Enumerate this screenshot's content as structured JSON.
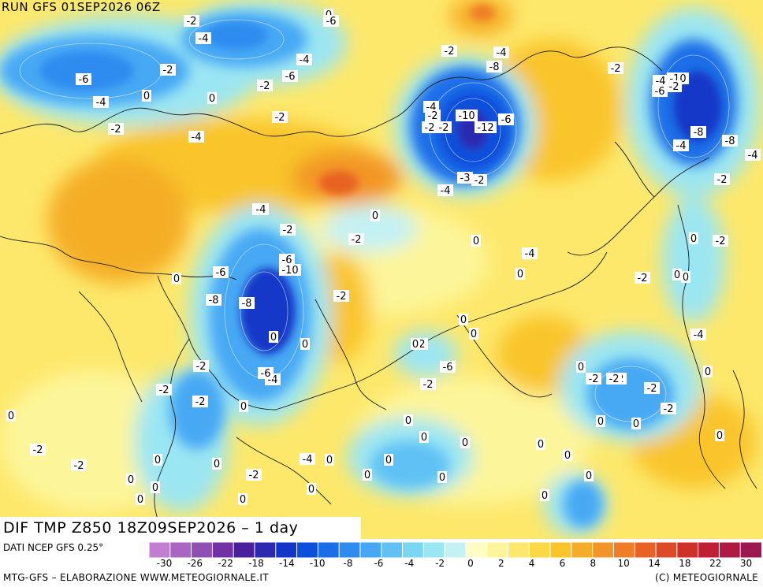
{
  "run_title": "RUN GFS 01SEP2026 06Z",
  "panel_title": "DIF TMP Z850 18Z09SEP2026 – 1 day",
  "credit_data": "DATI NCEP GFS 0.25°",
  "footer_left": "MTG-GFS – ELABORAZIONE WWW.METEOGIORNALE.IT",
  "footer_right": "(C) METEOGIORNALE",
  "colorbar": {
    "colors": [
      "#c07fd0",
      "#a866c2",
      "#8f4fb3",
      "#7232a6",
      "#4a1f9c",
      "#2b2ab0",
      "#1237c8",
      "#0c4fdc",
      "#1a6ee8",
      "#2e8cf0",
      "#46a8f4",
      "#5fc1f4",
      "#7bd6f3",
      "#9be6f3",
      "#c4f1f4",
      "#fdfdc4",
      "#fdf59a",
      "#fde86b",
      "#fbd943",
      "#f9c52a",
      "#f5ad28",
      "#f29528",
      "#ef7c27",
      "#e86224",
      "#dc4a26",
      "#cf3128",
      "#c01f34",
      "#ae1a45",
      "#9c184f"
    ],
    "tick_labels": [
      "-30",
      "-26",
      "-22",
      "-18",
      "-14",
      "-10",
      "-8",
      "-6",
      "-4",
      "-2",
      "0",
      "2",
      "4",
      "6",
      "8",
      "10",
      "14",
      "18",
      "22",
      "30"
    ]
  },
  "contour_labels": [
    "0",
    "-2",
    "-4",
    "-6",
    "-2",
    "-6",
    "-4",
    "-6",
    "-2",
    "-4",
    "0",
    "-2",
    "0",
    "-2",
    "-4",
    "-2",
    "-8",
    "-4",
    "-2",
    "-4",
    "-2",
    "-10",
    "-6",
    "-12",
    "-3",
    "-2",
    "-4",
    "-2",
    "-2",
    "-10",
    "-4",
    "-2",
    "-6",
    "-8",
    "-4",
    "-8",
    "-4",
    "-2",
    "-2",
    "0",
    "-2",
    "0",
    "-2",
    "-4",
    "-6",
    "-10",
    "-6",
    "-8",
    "-8",
    "0",
    "0",
    "-2",
    "0",
    "-4",
    "0",
    "-2",
    "-6",
    "-2",
    "-2",
    "-4",
    "-2",
    "-6",
    "-2",
    "0",
    "-2",
    "0",
    "-2",
    "-2",
    "-2",
    "0",
    "0",
    "0",
    "-2",
    "-2",
    "0",
    "0",
    "-4",
    "0",
    "0",
    "0",
    "0",
    "0",
    "0",
    "0",
    "0",
    "-2",
    "0",
    "0",
    "0",
    "0",
    "0",
    "0",
    "-2",
    "-2",
    "-2",
    "-4",
    "0",
    "0",
    "0",
    "0",
    "0",
    "0",
    "0",
    "0",
    "0",
    "0"
  ]
}
